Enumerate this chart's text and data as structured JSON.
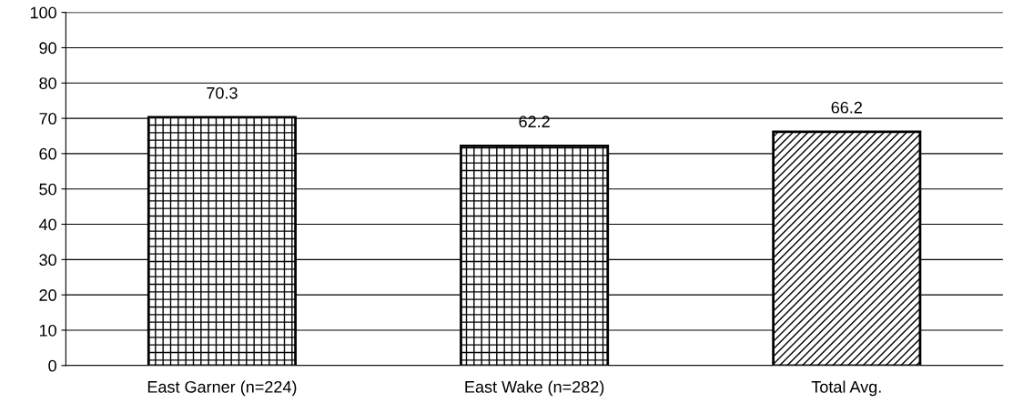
{
  "chart_data": {
    "type": "bar",
    "categories": [
      "East Garner (n=224)",
      "East Wake (n=282)",
      "Total Avg."
    ],
    "values": [
      70.3,
      62.2,
      66.2
    ],
    "colors": [
      "#000000",
      "#000000",
      "#000000"
    ],
    "ylim": [
      0,
      100
    ],
    "yticks": [
      0,
      10,
      20,
      30,
      40,
      50,
      60,
      70,
      80,
      90,
      100
    ],
    "grid": "y",
    "data_labels": true
  }
}
